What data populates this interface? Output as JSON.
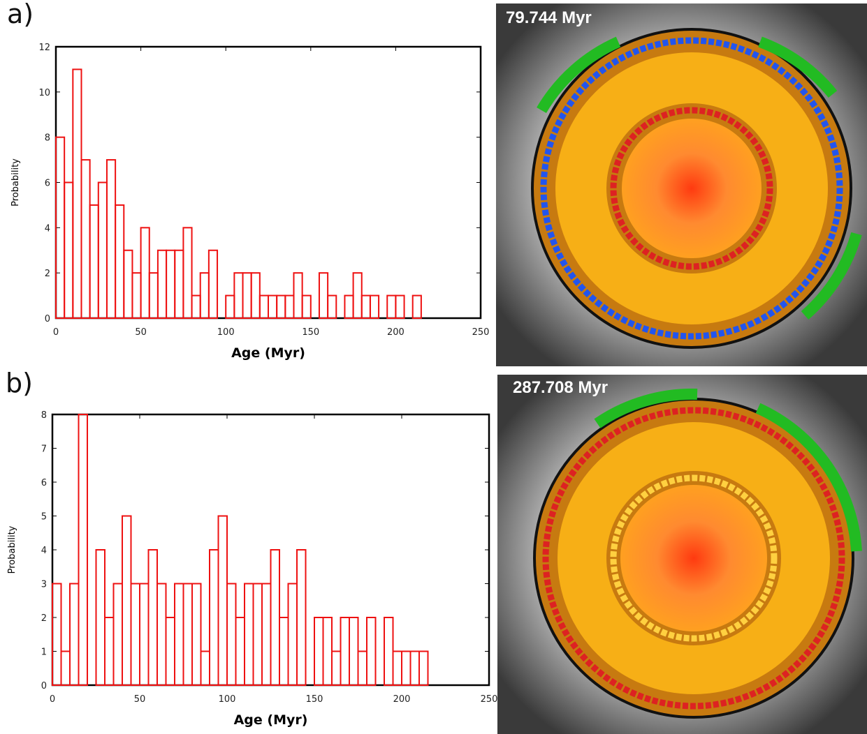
{
  "panels": [
    {
      "label": "a)",
      "time": "79.744 Myr"
    },
    {
      "label": "b)",
      "time": "287.708 Myr"
    }
  ],
  "chart_data": [
    {
      "type": "histogram",
      "x_label": "Age (Myr)",
      "y_label": "Probability",
      "color": "#ee1111",
      "bins": [
        0,
        5,
        10,
        15,
        20,
        25,
        30,
        35,
        40,
        45,
        50,
        55,
        60,
        65,
        70,
        75,
        80,
        85,
        90,
        95,
        100,
        105,
        110,
        115,
        120,
        125,
        130,
        135,
        140,
        145,
        150,
        155,
        160,
        165,
        170,
        175,
        180,
        185,
        190,
        195,
        200,
        205,
        210,
        215
      ],
      "counts": [
        8,
        6,
        11,
        7,
        5,
        6,
        7,
        5,
        3,
        2,
        4,
        2,
        3,
        3,
        3,
        4,
        1,
        2,
        3,
        0,
        1,
        2,
        2,
        2,
        1,
        1,
        1,
        1,
        2,
        1,
        0,
        2,
        1,
        0,
        1,
        2,
        1,
        1,
        0,
        1,
        1,
        0,
        1
      ],
      "xlim": [
        0,
        250
      ],
      "xticks": [
        0,
        50,
        100,
        150,
        200,
        250
      ],
      "ylim": [
        0,
        12
      ],
      "yticks": [
        0,
        2,
        4,
        6,
        8,
        10,
        12
      ]
    },
    {
      "type": "histogram",
      "x_label": "Age (Myr)",
      "y_label": "Probability",
      "color": "#ee1111",
      "bins": [
        0,
        5,
        10,
        15,
        20,
        25,
        30,
        35,
        40,
        45,
        50,
        55,
        60,
        65,
        70,
        75,
        80,
        85,
        90,
        95,
        100,
        105,
        110,
        115,
        120,
        125,
        130,
        135,
        140,
        145,
        150,
        155,
        160,
        165,
        170,
        175,
        180,
        185,
        190,
        195,
        200,
        205,
        210,
        215
      ],
      "counts": [
        3,
        1,
        3,
        8,
        0,
        4,
        2,
        3,
        5,
        3,
        3,
        4,
        3,
        2,
        3,
        3,
        3,
        1,
        4,
        5,
        3,
        2,
        3,
        3,
        3,
        4,
        2,
        3,
        4,
        0,
        2,
        2,
        1,
        2,
        2,
        1,
        2,
        0,
        2,
        1,
        1,
        1,
        1
      ],
      "xlim": [
        0,
        250
      ],
      "xticks": [
        0,
        50,
        100,
        150,
        200,
        250
      ],
      "ylim": [
        0,
        8
      ],
      "yticks": [
        0,
        1,
        2,
        3,
        4,
        5,
        6,
        7,
        8
      ]
    }
  ]
}
